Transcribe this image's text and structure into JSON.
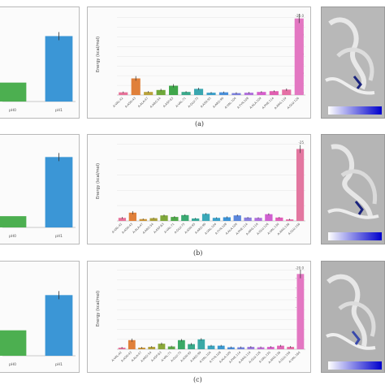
{
  "captions": [
    "(a)",
    "(b)",
    "(c)"
  ],
  "chart_data": [
    {
      "type": "bar",
      "panel": "a-left",
      "categories": [
        "pH0",
        "pH1"
      ],
      "values": [
        -5.5,
        -19.0
      ],
      "colors": [
        "#4caf50",
        "#3b96d6"
      ],
      "tick_labels": [
        "pH0",
        "pH1"
      ],
      "ylim": [
        -25,
        0
      ]
    },
    {
      "type": "bar",
      "panel": "a-middle",
      "ylabel": "Energy (kcal/mol)",
      "categories": [
        "A:VAL:42",
        "A:ASN:43",
        "A:ALA:47",
        "A:ARG:54",
        "A:ASP:63",
        "A:VAL:71",
        "A:GLU:75",
        "A:ASN:95",
        "A:ARG:99",
        "A:VAL:104",
        "A:TYR:108",
        "A:ALA:109",
        "A:PHE:114",
        "A:ARG:119",
        "A:GLU:126"
      ],
      "values": [
        -0.7,
        -4.3,
        -0.8,
        -1.3,
        -2.4,
        -0.8,
        -1.6,
        -0.6,
        -0.7,
        -0.5,
        -0.6,
        -0.8,
        -1.0,
        -1.4,
        -19.8
      ],
      "errors": [
        0.2,
        0.6,
        0.2,
        0.3,
        0.4,
        0.2,
        0.3,
        0.2,
        0.2,
        0.2,
        0.2,
        0.2,
        0.2,
        0.3,
        1.2
      ],
      "colors": [
        "#e7739a",
        "#e0803a",
        "#b9a23a",
        "#6fa83a",
        "#3fa64a",
        "#3aa98a",
        "#3aa7b0",
        "#3a9fc9",
        "#4a8fd9",
        "#7a7fdc",
        "#b06fdc",
        "#d65fcc",
        "#e05fb0",
        "#e56fa5",
        "#e377c2"
      ],
      "yticks": [
        0,
        -2.5,
        -5,
        -7.5,
        -10,
        -12.5,
        -15,
        -17.5,
        -20
      ],
      "tick_labels_y": [
        "0",
        "-2.5",
        "-5.0",
        "-7.5",
        "-10.0",
        "-12.5",
        "-15.0",
        "-17.5",
        "-20.0"
      ],
      "ylim": [
        -21,
        0
      ]
    },
    {
      "type": "bar",
      "panel": "b-left",
      "categories": [
        "pH0",
        "pH1"
      ],
      "values": [
        -4.0,
        -25.0
      ],
      "colors": [
        "#4caf50",
        "#3b96d6"
      ],
      "tick_labels": [
        "pH0",
        "pH1"
      ],
      "ylim": [
        -30,
        0
      ]
    },
    {
      "type": "bar",
      "panel": "b-middle",
      "ylabel": "Energy (kcal/mol)",
      "categories": [
        "A:VAL:42",
        "A:ASN:43",
        "A:ALA:47",
        "A:ARG:54",
        "A:ASP:63",
        "A:VAL:71",
        "A:GLU:75",
        "A:ASN:95",
        "A:ARG:99",
        "A:VAL:104",
        "A:TYR:108",
        "A:ALA:109",
        "A:PHE:114",
        "A:ARG:119",
        "A:GLU:126",
        "A:VAL:130",
        "A:ARG:136",
        "A:GLU:156"
      ],
      "values": [
        -1.0,
        -2.7,
        -0.6,
        -0.9,
        -1.8,
        -1.3,
        -1.9,
        -0.8,
        -2.3,
        -1.0,
        -1.2,
        -1.8,
        -1.1,
        -1.0,
        -2.2,
        -1.1,
        -0.5,
        -23.5
      ],
      "errors": [
        0.3,
        0.5,
        0.2,
        0.2,
        0.3,
        0.3,
        0.3,
        0.2,
        0.3,
        0.2,
        0.3,
        0.3,
        0.2,
        0.2,
        0.3,
        0.2,
        0.2,
        1.3
      ],
      "colors": [
        "#e7739a",
        "#e0803a",
        "#c9963a",
        "#a9a03a",
        "#7fa83a",
        "#4fa84a",
        "#3aa972",
        "#3aa99a",
        "#3aa8b8",
        "#3aa0c9",
        "#3a92d6",
        "#5a86dc",
        "#8a7edc",
        "#b06fdc",
        "#d060d0",
        "#e05fb8",
        "#e56fa8",
        "#e377a0"
      ],
      "yticks": [
        0,
        -5,
        -10,
        -15,
        -20,
        -25
      ],
      "tick_labels_y": [
        "0",
        "-5",
        "-10",
        "-15",
        "-20",
        "-25"
      ],
      "ylim": [
        -26,
        0
      ]
    },
    {
      "type": "bar",
      "panel": "c-left",
      "categories": [
        "pH0",
        "pH1"
      ],
      "values": [
        -6.5,
        -15.5
      ],
      "colors": [
        "#4caf50",
        "#3b96d6"
      ],
      "tick_labels": [
        "pH0",
        "pH1"
      ],
      "ylim": [
        -22,
        0
      ]
    },
    {
      "type": "bar",
      "panel": "c-middle",
      "ylabel": "Energy (kcal/mol)",
      "categories": [
        "A:VAL:42",
        "A:ASN:43",
        "A:ALA:47",
        "A:ARG:54",
        "A:ASP:63",
        "A:VAL:71",
        "A:GLU:75",
        "A:ASN:95",
        "A:ARG:99",
        "A:VAL:104",
        "A:TYR:108",
        "A:ALA:109",
        "A:PHE:114",
        "A:ARG:119",
        "A:GLU:126",
        "A:VAL:130",
        "A:ARG:136",
        "A:GLU:156",
        "A:VAL:160"
      ],
      "values": [
        -0.4,
        -2.3,
        -0.4,
        -0.6,
        -1.4,
        -0.7,
        -2.3,
        -1.3,
        -2.5,
        -0.9,
        -0.9,
        -0.5,
        -0.5,
        -0.6,
        -0.5,
        -0.6,
        -0.9,
        -0.6,
        -19.0
      ],
      "errors": [
        0.2,
        0.4,
        0.2,
        0.2,
        0.3,
        0.2,
        0.3,
        0.3,
        0.3,
        0.2,
        0.2,
        0.2,
        0.2,
        0.2,
        0.2,
        0.2,
        0.2,
        0.2,
        1.1
      ],
      "colors": [
        "#e7739a",
        "#e0803a",
        "#c9963a",
        "#b0a03a",
        "#8aa83a",
        "#5fa84a",
        "#3aa966",
        "#3aa98a",
        "#3aa9a6",
        "#3aa4bf",
        "#3a98d0",
        "#4a8cd9",
        "#7282dc",
        "#9a78dc",
        "#c06cd6",
        "#d862c8",
        "#e065b4",
        "#e36ca6",
        "#e377c2"
      ],
      "yticks": [
        0,
        -2.5,
        -5,
        -7.5,
        -10,
        -12.5,
        -15,
        -17.5,
        -20
      ],
      "tick_labels_y": [
        "0",
        "-2.5",
        "-5.0",
        "-7.5",
        "-10.0",
        "-12.5",
        "-15.0",
        "-17.5",
        "-20.0"
      ],
      "ylim": [
        -20.5,
        0
      ]
    }
  ]
}
